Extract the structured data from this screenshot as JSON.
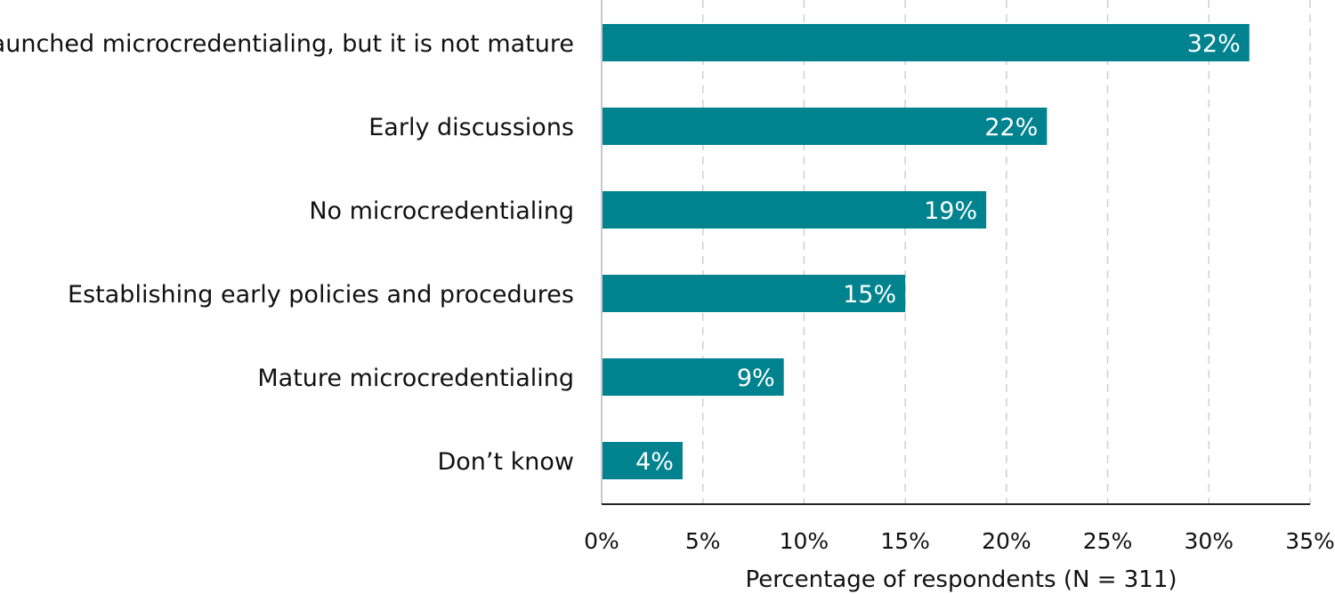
{
  "chart_data": {
    "type": "bar",
    "orientation": "horizontal",
    "categories": [
      "Launched microcredentialing, but it is not mature",
      "Early discussions",
      "No microcredentialing",
      "Establishing early policies and procedures",
      "Mature microcredentialing",
      "Don’t know"
    ],
    "values": [
      32,
      22,
      19,
      15,
      9,
      4
    ],
    "value_labels": [
      "32%",
      "22%",
      "19%",
      "15%",
      "9%",
      "4%"
    ],
    "x_ticks": [
      0,
      5,
      10,
      15,
      20,
      25,
      30,
      35
    ],
    "x_tick_labels": [
      "0%",
      "5%",
      "10%",
      "15%",
      "20%",
      "25%",
      "30%",
      "35%"
    ],
    "xlim": [
      0,
      35
    ],
    "xlabel": "Percentage of respondents (N = 311)",
    "ylabel": "",
    "title": "",
    "grid": "vertical dashed",
    "legend": "none",
    "colors": {
      "bar": "#00838F",
      "grid": "#d0d0d0",
      "axis": "#222222",
      "text": "#111111",
      "value_text": "#ffffff"
    }
  }
}
